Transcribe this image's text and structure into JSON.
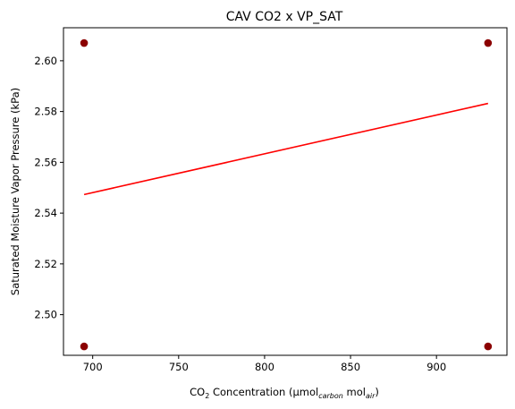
{
  "chart_data": {
    "type": "scatter",
    "title": "CAV CO2 x VP_SAT",
    "xlabel": {
      "prefix": "CO",
      "prefix_sub": "2",
      "middle": " Concentration (µmol",
      "sub1": "carbon",
      "middle2": " mol",
      "sub2": "air",
      "suffix": ")"
    },
    "ylabel": "Saturated Moisture Vapor Pressure (kPa)",
    "xlim": [
      683,
      941
    ],
    "ylim": [
      2.484,
      2.613
    ],
    "xticks": [
      700,
      750,
      800,
      850,
      900
    ],
    "yticks": [
      2.5,
      2.52,
      2.54,
      2.56,
      2.58,
      2.6
    ],
    "xtick_labels": [
      "700",
      "750",
      "800",
      "850",
      "900"
    ],
    "ytick_labels": [
      "2.50",
      "2.52",
      "2.54",
      "2.56",
      "2.58",
      "2.60"
    ],
    "grid": false,
    "series": [
      {
        "kind": "scatter",
        "color": "#8b0000",
        "points": [
          {
            "x": 695,
            "y": 2.607
          },
          {
            "x": 695,
            "y": 2.4875
          },
          {
            "x": 930,
            "y": 2.607
          },
          {
            "x": 930,
            "y": 2.4875
          }
        ]
      },
      {
        "kind": "line",
        "color": "#ff0000",
        "points": [
          {
            "x": 695,
            "y": 2.5473
          },
          {
            "x": 930,
            "y": 2.5832
          }
        ]
      }
    ]
  }
}
